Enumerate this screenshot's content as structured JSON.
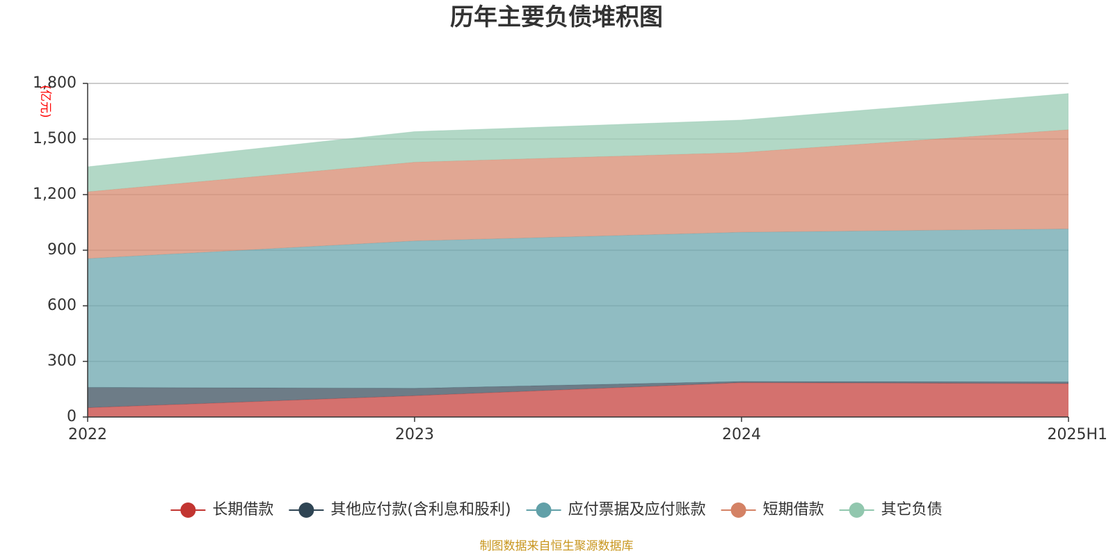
{
  "chart_data": {
    "type": "area",
    "stacked": true,
    "title": "历年主要负债堆积图",
    "unit": "(亿元)",
    "categories": [
      "2022",
      "2023",
      "2024",
      "2025H1"
    ],
    "ylim": [
      0,
      1800
    ],
    "yticks": [
      "0",
      "300",
      "600",
      "900",
      "1,200",
      "1,500",
      "1,800"
    ],
    "ytick_values": [
      0,
      300,
      600,
      900,
      1200,
      1500,
      1800
    ],
    "grid": true,
    "legend_position": "bottom",
    "series": [
      {
        "name": "长期借款",
        "values": [
          50,
          115,
          185,
          180
        ],
        "color": "#c23531"
      },
      {
        "name": "其他应付款(含利息和股利)",
        "values": [
          110,
          40,
          7,
          10
        ],
        "color": "#2f4554"
      },
      {
        "name": "应付票据及应付账款",
        "values": [
          695,
          795,
          805,
          825
        ],
        "color": "#61a0a8"
      },
      {
        "name": "短期借款",
        "values": [
          360,
          425,
          430,
          535
        ],
        "color": "#d48265"
      },
      {
        "name": "其它负债",
        "values": [
          135,
          165,
          175,
          195
        ],
        "color": "#91c7ae"
      }
    ],
    "source": "制图数据来自恒生聚源数据库"
  }
}
